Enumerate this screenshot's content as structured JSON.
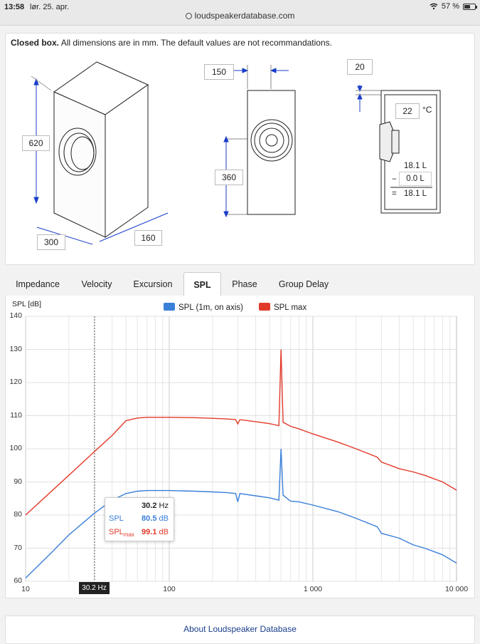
{
  "statusbar": {
    "time": "13:58",
    "date": "lør. 25. apr.",
    "battery": "57 %",
    "battery_level": 0.57
  },
  "browser": {
    "url": "loudspeakerdatabase.com"
  },
  "box": {
    "intro_bold": "Closed box.",
    "intro_rest": " All dimensions are in mm. The default values are not recommandations.",
    "height": "620",
    "depth": "300",
    "width_iso": "160",
    "front_width": "150",
    "driver_height": "360",
    "wall": "20",
    "temperature": "22",
    "temp_unit": "°C",
    "vol_gross": "18.1 L",
    "vol_minus_sign": "−",
    "vol_minus": "0.0 L",
    "vol_eq_sign": "=",
    "vol_net": "18.1 L"
  },
  "tabs": [
    "Impedance",
    "Velocity",
    "Excursion",
    "SPL",
    "Phase",
    "Group Delay"
  ],
  "active_tab": "SPL",
  "chart_data": {
    "type": "line",
    "ylabel": "SPL [dB]",
    "x_scale": "log",
    "xlim": [
      10,
      10000
    ],
    "ylim": [
      60,
      140
    ],
    "y_ticks": [
      "140",
      "130",
      "120",
      "110",
      "100",
      "90",
      "80",
      "70",
      "60"
    ],
    "x_ticks": [
      "10",
      "100",
      "1 000",
      "10 000"
    ],
    "legend_position": "top-center",
    "grid": true,
    "series": [
      {
        "name": "SPL (1m, on axis)",
        "color": "#3a7fd9",
        "x": [
          10,
          15,
          20,
          30,
          40,
          50,
          60,
          70,
          100,
          150,
          200,
          250,
          290,
          300,
          310,
          400,
          500,
          580,
          600,
          620,
          700,
          800,
          1000,
          1500,
          2000,
          2800,
          3000,
          4000,
          5000,
          6000,
          8000,
          10000
        ],
        "y": [
          61,
          68.5,
          74,
          80.5,
          84.5,
          86.5,
          87.2,
          87.4,
          87.4,
          87.2,
          87,
          86.8,
          86.5,
          84,
          86.5,
          85.8,
          85.2,
          84.5,
          100,
          86,
          84.2,
          84,
          83,
          81,
          79,
          76.5,
          74.5,
          73,
          71,
          70,
          68,
          65.5
        ]
      },
      {
        "name": "SPL max",
        "color": "#e23a2a",
        "x": [
          10,
          20,
          30,
          40,
          50,
          60,
          70,
          100,
          150,
          200,
          250,
          290,
          300,
          310,
          400,
          500,
          580,
          600,
          620,
          700,
          800,
          1000,
          1500,
          2000,
          2800,
          3000,
          4000,
          5000,
          6000,
          8000,
          10000
        ],
        "y": [
          80,
          92,
          99.1,
          104,
          108.5,
          109.3,
          109.5,
          109.5,
          109.4,
          109.2,
          109,
          108.8,
          107.5,
          108.8,
          108.2,
          107.6,
          107,
          130,
          108,
          106.8,
          106,
          104.5,
          102,
          100,
          97.5,
          96,
          94,
          93,
          92,
          90,
          87.5
        ]
      }
    ],
    "cursor": {
      "x_label": "30.2 Hz",
      "freq": "30.2",
      "freq_unit": "Hz",
      "spl_label": "SPL",
      "spl": "80.5",
      "spl_unit": "dB",
      "splmax_label": "SPL",
      "splmax_sub": "max",
      "splmax": "99.1",
      "splmax_unit": "dB"
    }
  },
  "footer": {
    "link": "About Loudspeaker Database"
  }
}
